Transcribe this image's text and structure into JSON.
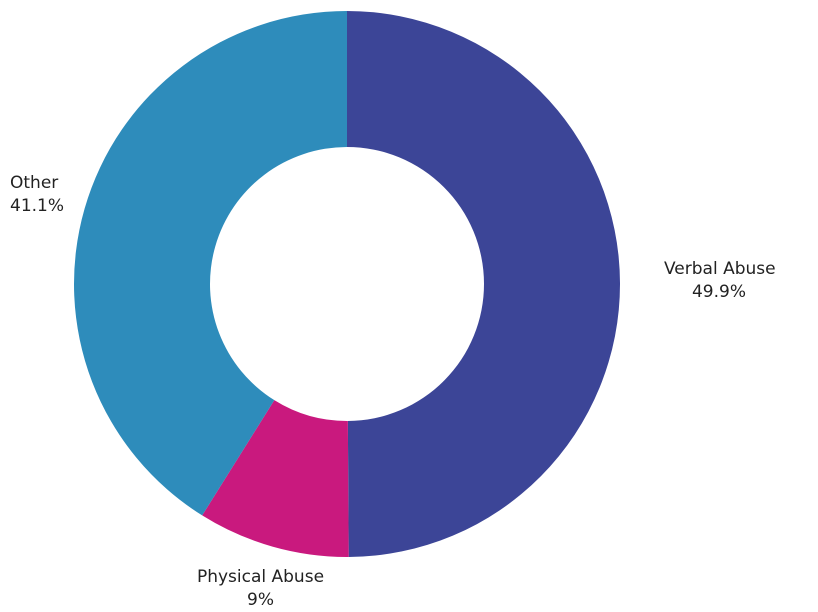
{
  "chart_data": {
    "type": "pie",
    "variant": "donut",
    "title": "",
    "slices": [
      {
        "label": "Verbal Abuse",
        "value": 49.9,
        "value_label": "49.9%",
        "color": "#3C4597"
      },
      {
        "label": "Physical Abuse",
        "value": 9,
        "value_label": "9%",
        "color": "#C9197E"
      },
      {
        "label": "Other",
        "value": 41.1,
        "value_label": "41.1%",
        "color": "#2E8CBB"
      }
    ],
    "legend": "none",
    "start_direction": "top",
    "order": "clockwise"
  }
}
